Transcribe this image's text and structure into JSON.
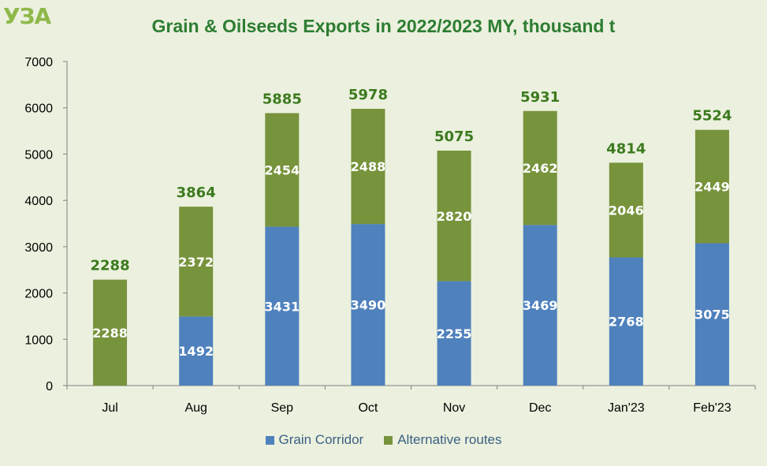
{
  "logo_text": "УЗА",
  "chart_data": {
    "type": "bar",
    "stacked": true,
    "title": "Grain & Oilseeds Exports in 2022/2023 MY, thousand t",
    "categories": [
      "Jul",
      "Aug",
      "Sep",
      "Oct",
      "Nov",
      "Dec",
      "Jan'23",
      "Feb'23"
    ],
    "series": [
      {
        "name": "Grain Corridor",
        "color": "#4f81bd",
        "values": [
          null,
          1492,
          3431,
          3490,
          2255,
          3469,
          2768,
          3075
        ]
      },
      {
        "name": "Alternative routes",
        "color": "#77933c",
        "values": [
          2288,
          2372,
          2454,
          2488,
          2820,
          2462,
          2046,
          2449
        ]
      }
    ],
    "totals": [
      2288,
      3864,
      5885,
      5978,
      5075,
      5931,
      4814,
      5524
    ],
    "ylim": [
      0,
      7000
    ],
    "yticks": [
      0,
      1000,
      2000,
      3000,
      4000,
      5000,
      6000,
      7000
    ],
    "grid": false,
    "legend_position": "bottom"
  }
}
